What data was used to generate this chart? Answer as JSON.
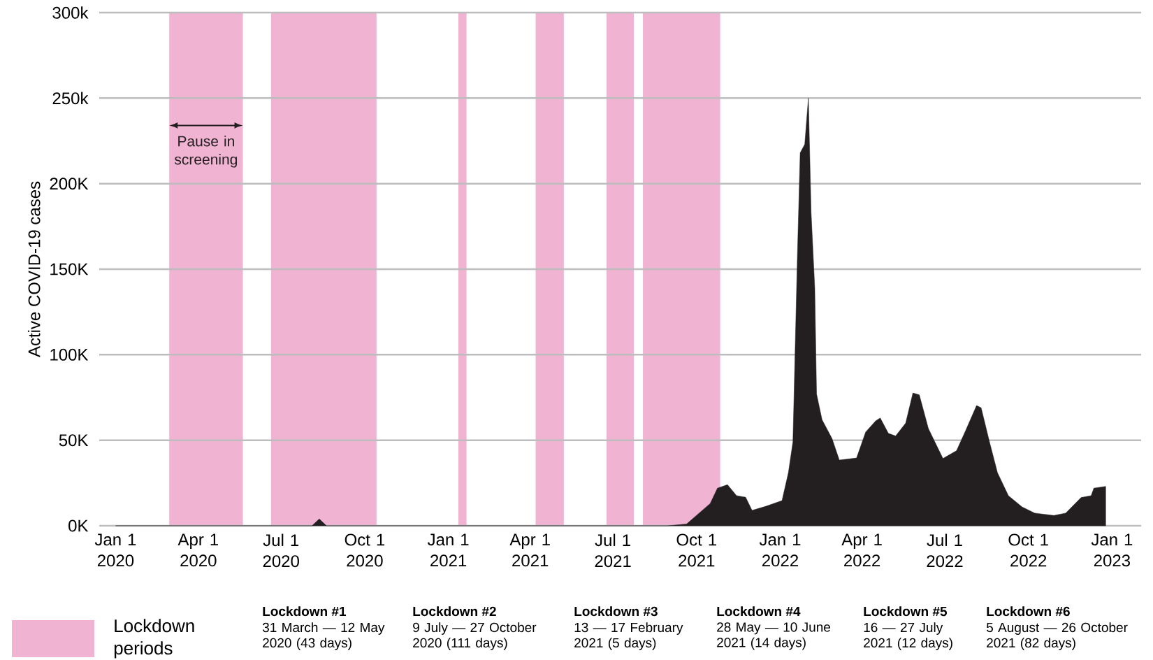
{
  "chart_data": {
    "type": "area",
    "ylabel": "Active COVID-19 cases",
    "x": [
      "2020-01-01",
      "2020-08-04",
      "2020-08-12",
      "2020-08-20",
      "2021-08-30",
      "2021-09-20",
      "2021-10-16",
      "2021-10-24",
      "2021-11-04",
      "2021-11-14",
      "2021-11-24",
      "2021-12-01",
      "2021-12-17",
      "2022-01-03",
      "2022-01-10",
      "2022-01-15",
      "2022-01-20",
      "2022-01-23",
      "2022-01-28",
      "2022-02-01",
      "2022-02-04",
      "2022-02-08",
      "2022-02-10",
      "2022-02-16",
      "2022-02-27",
      "2022-03-07",
      "2022-03-26",
      "2022-04-05",
      "2022-04-16",
      "2022-04-21",
      "2022-04-30",
      "2022-05-08",
      "2022-05-19",
      "2022-05-27",
      "2022-06-03",
      "2022-06-13",
      "2022-06-29",
      "2022-07-14",
      "2022-07-24",
      "2022-08-05",
      "2022-08-10",
      "2022-08-19",
      "2022-08-28",
      "2022-09-09",
      "2022-09-24",
      "2022-10-08",
      "2022-10-29",
      "2022-11-11",
      "2022-11-28",
      "2022-12-09",
      "2022-12-12",
      "2022-12-25"
    ],
    "values": [
      0,
      0,
      4000,
      0,
      0,
      1000,
      13000,
      22000,
      24000,
      17600,
      16700,
      9000,
      11500,
      14700,
      31000,
      49000,
      159000,
      218000,
      223000,
      250000,
      183000,
      139000,
      77000,
      62000,
      51000,
      38400,
      39600,
      54800,
      61300,
      63000,
      54000,
      52500,
      60000,
      77600,
      76500,
      56800,
      39300,
      43900,
      55700,
      70300,
      69000,
      49400,
      31000,
      17600,
      11000,
      7400,
      6000,
      7400,
      16500,
      17600,
      22000,
      23000
    ],
    "color": "#231f20",
    "xlim": [
      "2019-12-14",
      "2023-02-02"
    ],
    "ylim": [
      0,
      300000
    ],
    "xticks": [
      {
        "value": "2020-01-01",
        "label": "Jan 1 2020"
      },
      {
        "value": "2020-04-01",
        "label": "Apr 1 2020"
      },
      {
        "value": "2020-07-01",
        "label": "Jul 1 2020"
      },
      {
        "value": "2020-10-01",
        "label": "Oct 1 2020"
      },
      {
        "value": "2021-01-01",
        "label": "Jan 1 2021"
      },
      {
        "value": "2021-04-01",
        "label": "Apr 1 2021"
      },
      {
        "value": "2021-07-01",
        "label": "Jul 1 2021"
      },
      {
        "value": "2021-10-01",
        "label": "Oct 1 2021"
      },
      {
        "value": "2022-01-01",
        "label": "Jan 1 2022"
      },
      {
        "value": "2022-04-01",
        "label": "Apr 1 2022"
      },
      {
        "value": "2022-07-01",
        "label": "Jul 1 2022"
      },
      {
        "value": "2022-10-01",
        "label": "Oct 1 2022"
      },
      {
        "value": "2023-01-01",
        "label": "Jan 1 2023"
      }
    ],
    "yticks": [
      {
        "value": 0,
        "label": "0K"
      },
      {
        "value": 50000,
        "label": "50K"
      },
      {
        "value": 100000,
        "label": "100K"
      },
      {
        "value": 150000,
        "label": "150K"
      },
      {
        "value": 200000,
        "label": "200K"
      },
      {
        "value": 250000,
        "label": "250k"
      },
      {
        "value": 300000,
        "label": "300k"
      }
    ],
    "grid": "y",
    "bands": [
      {
        "axis": "x",
        "from": "2020-02-29",
        "to": "2020-05-20",
        "label": "Lockdown periods",
        "color": "#f0b3d2"
      },
      {
        "axis": "x",
        "from": "2020-06-20",
        "to": "2020-10-14",
        "color": "#f0b3d2"
      },
      {
        "axis": "x",
        "from": "2021-01-12",
        "to": "2021-01-21",
        "color": "#f0b3d2"
      },
      {
        "axis": "x",
        "from": "2021-04-07",
        "to": "2021-05-08",
        "color": "#f0b3d2"
      },
      {
        "axis": "x",
        "from": "2021-06-24",
        "to": "2021-07-24",
        "color": "#f0b3d2"
      },
      {
        "axis": "x",
        "from": "2021-08-03",
        "to": "2021-10-27",
        "color": "#f0b3d2"
      }
    ],
    "legend": "bottom left",
    "annotations": [
      "Pause in screening",
      "Lockdown #1",
      "31 March — 12 May 2020 (43 days)",
      "Lockdown #2",
      "9 July — 27 October 2020 (111 days)",
      "Lockdown #3",
      "13 — 17 February 2021 (5 days)",
      "Lockdown #4",
      "28 May — 10 June 2021 (14 days)",
      "Lockdown #5",
      "16 — 27 July 2021 (12 days)",
      "Lockdown #6",
      "5 August — 26 October 2021 (82 days)"
    ]
  }
}
